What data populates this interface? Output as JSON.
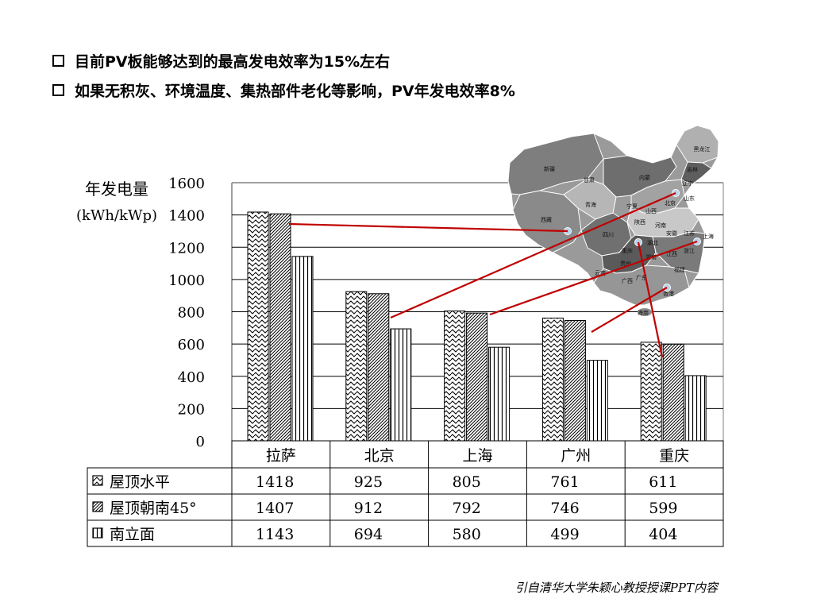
{
  "bullets": [
    "目前PV板能够达到的最高发电效率为15%左右",
    "如果无积灰、环境温度、集热部件老化等影响，PV年发电效率8%"
  ],
  "colors": {
    "line": "#c00000",
    "map_dark": "#5a5a5a",
    "map_mid": "#8c8c8c",
    "map_light": "#c4c4c4",
    "city_dot": "#b8d0e8"
  },
  "map": {
    "province_labels": [
      "新疆",
      "西藏",
      "青海",
      "甘肃",
      "四川",
      "内蒙",
      "黑龙江",
      "吉林",
      "辽宁",
      "北京",
      "山东",
      "山西",
      "河南",
      "湖北",
      "安徽",
      "江苏",
      "上海",
      "浙江",
      "湖南",
      "江西",
      "福建",
      "广东",
      "广西",
      "云南",
      "贵州",
      "重庆",
      "海南",
      "香港",
      "宁夏",
      "陕西"
    ]
  },
  "chart_data": {
    "type": "bar",
    "ylabel": "年发电量",
    "yunit": "(kWh/kWp)",
    "ylim": [
      0,
      1600
    ],
    "yticks": [
      "1600",
      "1400",
      "1200",
      "1000",
      "800",
      "600",
      "400",
      "200",
      "0"
    ],
    "categories": [
      "拉萨",
      "北京",
      "上海",
      "广州",
      "重庆"
    ],
    "series": [
      {
        "name": "屋顶水平",
        "values": [
          1418,
          925,
          805,
          761,
          611
        ],
        "pattern": "wave"
      },
      {
        "name": "屋顶朝南45°",
        "values": [
          1407,
          912,
          792,
          746,
          599
        ],
        "pattern": "diag"
      },
      {
        "name": "南立面",
        "values": [
          1143,
          694,
          580,
          499,
          404
        ],
        "pattern": "vert"
      }
    ],
    "grid": true,
    "legend": "data table below chart"
  },
  "source": "引自清华大学朱颖心教授授课PPT内容"
}
